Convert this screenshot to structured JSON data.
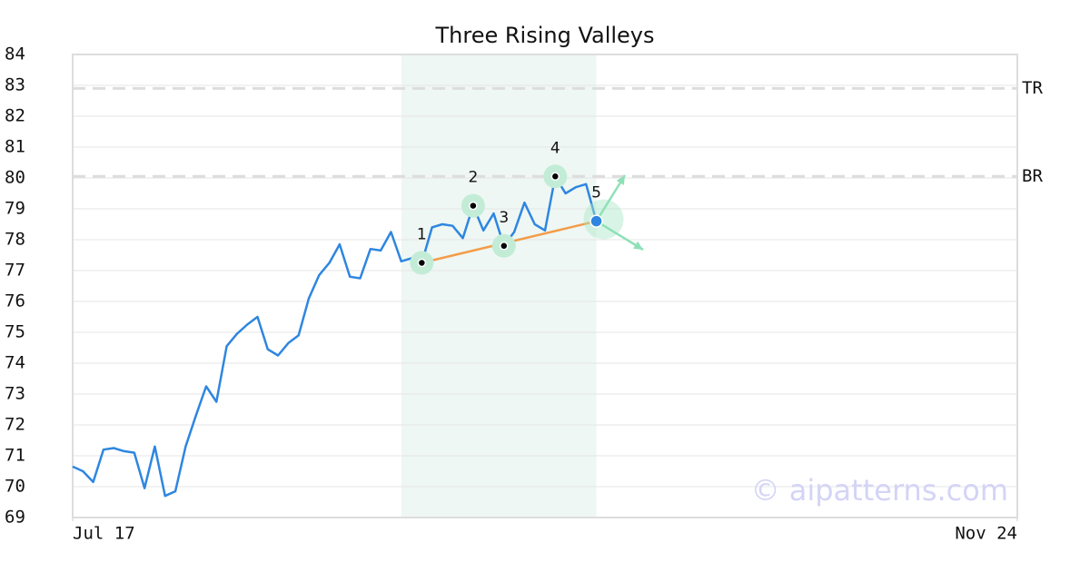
{
  "chart_data": {
    "type": "line",
    "title": "Three Rising Valleys",
    "color": "#2e86e0",
    "values": [
      70.65,
      70.5,
      70.15,
      71.2,
      71.25,
      71.15,
      71.1,
      69.95,
      71.3,
      69.7,
      69.85,
      71.3,
      72.3,
      73.25,
      72.75,
      74.55,
      74.95,
      75.25,
      75.5,
      74.45,
      74.25,
      74.65,
      74.9,
      76.1,
      76.85,
      77.25,
      77.85,
      76.8,
      76.75,
      77.7,
      77.65,
      78.25,
      77.3,
      77.4,
      77.25,
      78.4,
      78.5,
      78.45,
      78.05,
      79.1,
      78.3,
      78.85,
      77.8,
      78.25,
      79.2,
      78.5,
      78.3,
      80.05,
      79.5,
      79.7,
      79.8,
      78.6
    ],
    "xlim": [
      0,
      92
    ],
    "xticks": [
      {
        "value": 0,
        "label": "Jul 17"
      },
      {
        "value": 92,
        "label": "Nov 24"
      }
    ],
    "ylim": [
      69,
      84
    ],
    "yticks": [
      69,
      70,
      71,
      72,
      73,
      74,
      75,
      76,
      77,
      78,
      79,
      80,
      81,
      82,
      83,
      84
    ],
    "grid": true,
    "highlight_x": [
      32,
      51
    ],
    "highlight_color": "#eef7f3",
    "pattern_points": [
      {
        "label": "1",
        "x": 34,
        "value": 77.25
      },
      {
        "label": "2",
        "x": 39,
        "value": 79.1
      },
      {
        "label": "3",
        "x": 42,
        "value": 77.8
      },
      {
        "label": "4",
        "x": 47,
        "value": 80.05
      },
      {
        "label": "5",
        "x": 51,
        "value": 78.6
      }
    ],
    "trend_color": "#f39c4a",
    "levels": [
      {
        "label": "TR",
        "value": 82.9
      },
      {
        "label": "BR",
        "value": 80.05
      }
    ],
    "watermark": "© aipatterns.com"
  }
}
